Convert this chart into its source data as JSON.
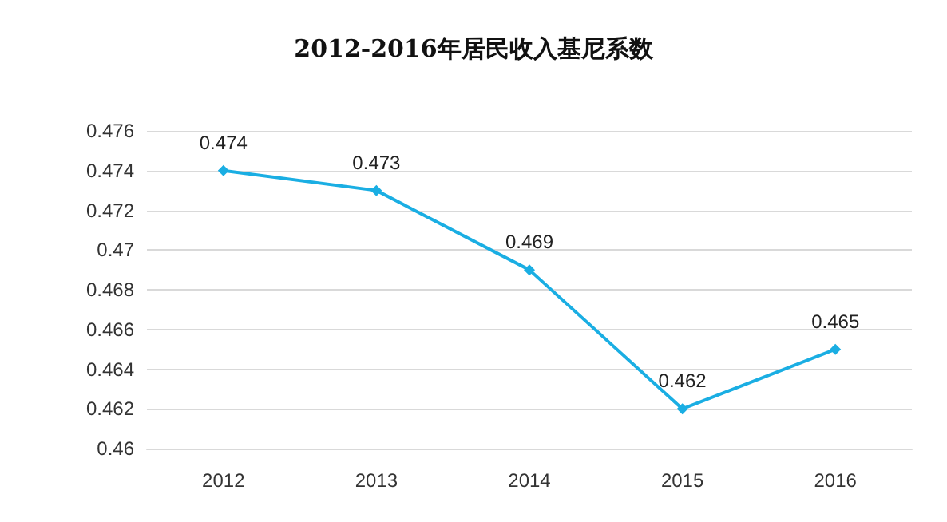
{
  "chart_data": {
    "type": "line",
    "title": "2012-2016年居民收入基尼系数",
    "categories": [
      "2012",
      "2013",
      "2014",
      "2015",
      "2016"
    ],
    "values": [
      0.474,
      0.473,
      0.469,
      0.462,
      0.465
    ],
    "color": "#1aaee3",
    "ylim": [
      0.46,
      0.476
    ],
    "yticks": [
      0.46,
      0.462,
      0.464,
      0.466,
      0.468,
      0.47,
      0.472,
      0.474,
      0.476
    ],
    "grid": "y",
    "marker": "diamond",
    "data_labels": true
  }
}
